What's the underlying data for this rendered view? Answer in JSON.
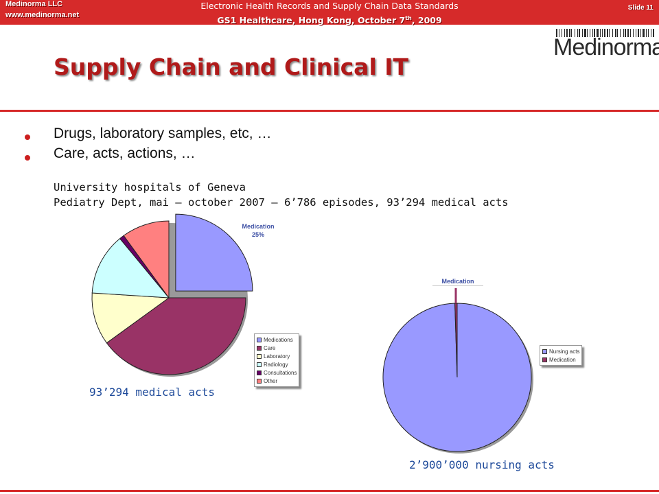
{
  "header": {
    "company": "Medinorma LLC",
    "website": "www.medinorma.net",
    "conference_line1": "Electronic Health Records and Supply Chain Data Standards",
    "conference_line2": "GS1 Healthcare, Hong Kong, October 7",
    "conference_sup": "th",
    "conference_year": ", 2009",
    "slide": "Slide 11"
  },
  "logo": {
    "text": "Medinorma"
  },
  "title": "Supply Chain and Clinical IT",
  "bullets": [
    "Drugs, laboratory samples, etc, …",
    "Care, acts, actions, …"
  ],
  "source": {
    "line1": "University hospitals of Geneva",
    "line2": "Pediatry Dept, mai – october 2007 – 6’786 episodes, 93’294 medical acts"
  },
  "colors": {
    "accent": "#d62a2a",
    "title": "#b01a1a",
    "caption": "#1e4a9a"
  },
  "chart_data": [
    {
      "type": "pie",
      "caption": "93’294 medical acts",
      "callout": {
        "label": "Medication",
        "value": "25%"
      },
      "legend": [
        "Medications",
        "Care",
        "Laboratory",
        "Radiology",
        "Consultations",
        "Other"
      ],
      "slices": [
        {
          "name": "Medications",
          "value": 25,
          "color": "#9999ff",
          "exploded": true
        },
        {
          "name": "Care",
          "value": 40,
          "color": "#993366"
        },
        {
          "name": "Laboratory",
          "value": 11,
          "color": "#ffffcc"
        },
        {
          "name": "Radiology",
          "value": 13,
          "color": "#ccffff"
        },
        {
          "name": "Consultations",
          "value": 1,
          "color": "#660066"
        },
        {
          "name": "Other",
          "value": 10,
          "color": "#ff8080"
        }
      ]
    },
    {
      "type": "pie",
      "caption": "2’900’000 nursing acts",
      "callout": {
        "label": "Medication"
      },
      "legend": [
        "Nursing acts",
        "Medication"
      ],
      "slices": [
        {
          "name": "Nursing acts",
          "value": 99.5,
          "color": "#9999ff"
        },
        {
          "name": "Medication",
          "value": 0.5,
          "color": "#993366"
        }
      ]
    }
  ]
}
